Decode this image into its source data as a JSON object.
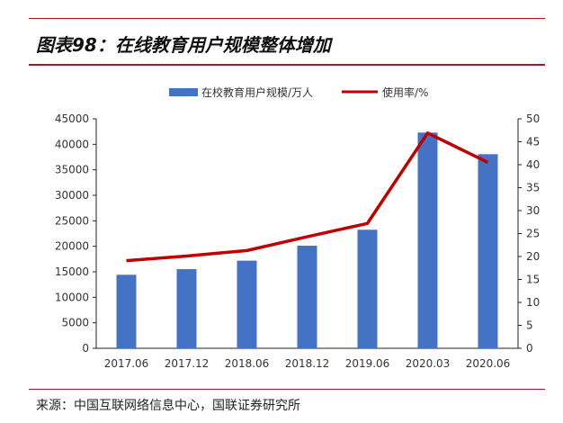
{
  "header": {
    "title": "图表98：在线教育用户规模整体增加"
  },
  "footer": {
    "source": "来源：中国互联网络信息中心，国联证券研究所"
  },
  "chart_data": {
    "type": "bar+line",
    "categories": [
      "2017.06",
      "2017.12",
      "2018.06",
      "2018.12",
      "2019.06",
      "2020.03",
      "2020.06"
    ],
    "series": [
      {
        "name": "在校教育用户规模/万人",
        "type": "bar",
        "axis": "left",
        "color": "#4472c4",
        "values": [
          14416,
          15518,
          17186,
          20123,
          23246,
          42296,
          38060
        ]
      },
      {
        "name": "使用率/%",
        "type": "line",
        "axis": "right",
        "color": "#c00000",
        "values": [
          19.1,
          20.1,
          21.3,
          24.3,
          27.2,
          46.9,
          40.5
        ]
      }
    ],
    "y_left": {
      "range": [
        0,
        45000
      ],
      "ticks": [
        0,
        5000,
        10000,
        15000,
        20000,
        25000,
        30000,
        35000,
        40000,
        45000
      ]
    },
    "y_right": {
      "range": [
        0,
        50
      ],
      "ticks": [
        0,
        5,
        10,
        15,
        20,
        25,
        30,
        35,
        40,
        45,
        50
      ]
    },
    "legend": "top",
    "grid": false
  }
}
